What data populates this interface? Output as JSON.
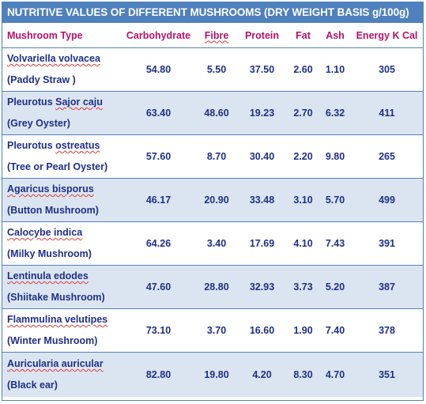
{
  "title": "NUTRITIVE VALUES OF DIFFERENT MUSHROOMS (DRY WEIGHT BASIS g/100g)",
  "headers": [
    "Mushroom Type",
    "Carbohydrate",
    "Fibre",
    "Protein",
    "Fat",
    "Ash",
    "Energy K Cal"
  ],
  "rows": [
    {
      "latin": "Volvariella volvacea",
      "common": "(Paddy Straw )",
      "carbohydrate": "54.80",
      "fibre": "5.50",
      "protein": "37.50",
      "fat": "2.60",
      "ash": "1.10",
      "energy": "305"
    },
    {
      "latin": "Pleurotus Sajor caju",
      "common": "(Grey Oyster)",
      "carbohydrate": "63.40",
      "fibre": "48.60",
      "protein": "19.23",
      "fat": "2.70",
      "ash": "6.32",
      "energy": "411"
    },
    {
      "latin": "Pleurotus ostreatus",
      "common": "(Tree or Pearl Oyster)",
      "carbohydrate": "57.60",
      "fibre": "8.70",
      "protein": "30.40",
      "fat": "2.20",
      "ash": "9.80",
      "energy": "265"
    },
    {
      "latin": "Agaricus bisporus",
      "common": "(Button Mushroom)",
      "carbohydrate": "46.17",
      "fibre": "20.90",
      "protein": "33.48",
      "fat": "3.10",
      "ash": "5.70",
      "energy": "499"
    },
    {
      "latin": "Calocybe indica",
      "common": "(Milky Mushroom)",
      "carbohydrate": "64.26",
      "fibre": "3.40",
      "protein": "17.69",
      "fat": "4.10",
      "ash": "7.43",
      "energy": "391"
    },
    {
      "latin": "Lentinula edodes",
      "common": "(Shiitake Mushroom)",
      "carbohydrate": "47.60",
      "fibre": "28.80",
      "protein": "32.93",
      "fat": "3.73",
      "ash": "5.20",
      "energy": "387"
    },
    {
      "latin": "Flammulina velutipes",
      "common": "(Winter Mushroom)",
      "carbohydrate": "73.10",
      "fibre": "3.70",
      "protein": "16.60",
      "fat": "1.90",
      "ash": "7.40",
      "energy": "378"
    },
    {
      "latin": "Auricularia auricular",
      "common": "(Black ear)",
      "carbohydrate": "82.80",
      "fibre": "19.80",
      "protein": "4.20",
      "fat": "8.30",
      "ash": "4.70",
      "energy": "351"
    }
  ],
  "colors": {
    "title_background": "#4f81bd",
    "title_text": "#ffffff",
    "header_text": "#b4116a",
    "body_text": "#1f2f88",
    "band_fill": "#dbe5f1",
    "border": "#4f81bd",
    "spellcheck_underline": "#e03b3b"
  }
}
